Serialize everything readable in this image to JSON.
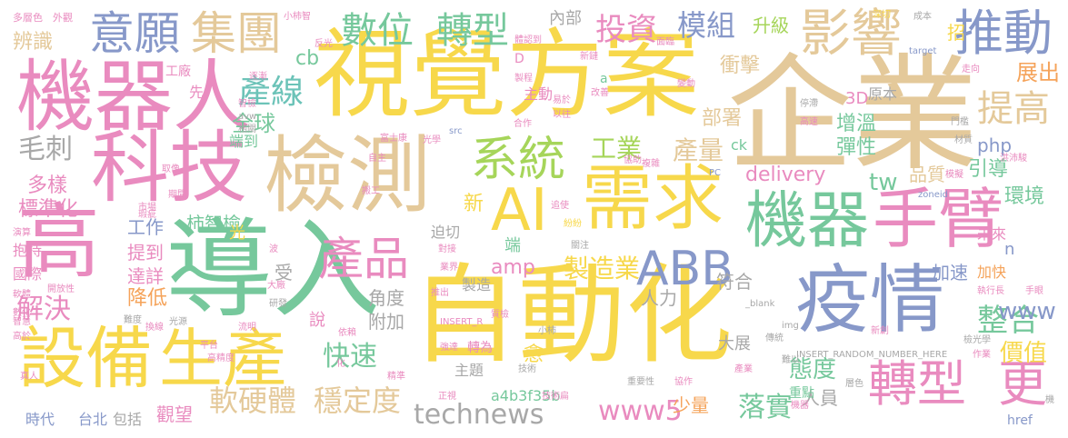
{
  "palette": {
    "yellow": "#f7d84b",
    "green": "#76c89c",
    "pink": "#e98bbf",
    "tan": "#e4c99a",
    "blue": "#8798c9",
    "gray": "#a8a8a8",
    "lime": "#a6d55a",
    "orange": "#f5a35a",
    "teal": "#6cc3b8"
  },
  "words": [
    {
      "text": "企業",
      "color": "tan"
    },
    {
      "text": "視覺方案",
      "color": "yellow"
    },
    {
      "text": "自動化",
      "color": "yellow"
    },
    {
      "text": "導入",
      "color": "green"
    },
    {
      "text": "檢測",
      "color": "tan"
    },
    {
      "text": "機器人",
      "color": "pink"
    },
    {
      "text": "科技",
      "color": "pink"
    },
    {
      "text": "疫情",
      "color": "blue"
    },
    {
      "text": "需求",
      "color": "yellow"
    },
    {
      "text": "機器",
      "color": "green"
    },
    {
      "text": "手臂",
      "color": "pink"
    },
    {
      "text": "設備",
      "color": "yellow"
    },
    {
      "text": "生產",
      "color": "yellow"
    },
    {
      "text": "高",
      "color": "pink"
    },
    {
      "text": "AI",
      "color": "yellow"
    },
    {
      "text": "系統",
      "color": "lime"
    },
    {
      "text": "產品",
      "color": "pink"
    },
    {
      "text": "ABB",
      "color": "blue"
    },
    {
      "text": "轉型",
      "color": "pink"
    },
    {
      "text": "更",
      "color": "pink"
    },
    {
      "text": "意願",
      "color": "blue"
    },
    {
      "text": "集團",
      "color": "tan"
    },
    {
      "text": "數位",
      "color": "green"
    },
    {
      "text": "轉型",
      "color": "green"
    },
    {
      "text": "影響",
      "color": "tan"
    },
    {
      "text": "推動",
      "color": "blue"
    },
    {
      "text": "投資",
      "color": "pink"
    },
    {
      "text": "模組",
      "color": "blue"
    },
    {
      "text": "升級",
      "color": "lime"
    },
    {
      "text": "內部",
      "color": "gray"
    },
    {
      "text": "產線",
      "color": "teal"
    },
    {
      "text": "提高",
      "color": "tan"
    },
    {
      "text": "展出",
      "color": "orange"
    },
    {
      "text": "全球",
      "color": "green"
    },
    {
      "text": "衝擊",
      "color": "tan"
    },
    {
      "text": "部署",
      "color": "tan"
    },
    {
      "text": "工業",
      "color": "lime"
    },
    {
      "text": "產量",
      "color": "tan"
    },
    {
      "text": "毛刺",
      "color": "gray"
    },
    {
      "text": "軟硬體",
      "color": "tan"
    },
    {
      "text": "穩定度",
      "color": "tan"
    },
    {
      "text": "technews",
      "color": "gray"
    },
    {
      "text": "www5",
      "color": "pink"
    },
    {
      "text": "落實",
      "color": "green"
    },
    {
      "text": "態度",
      "color": "green"
    },
    {
      "text": "價值",
      "color": "yellow"
    },
    {
      "text": "整合",
      "color": "green"
    },
    {
      "text": "www",
      "color": "blue"
    },
    {
      "text": "製造業",
      "color": "yellow"
    },
    {
      "text": "amp",
      "color": "pink"
    },
    {
      "text": "快速",
      "color": "green"
    },
    {
      "text": "解決",
      "color": "pink"
    },
    {
      "text": "降低",
      "color": "orange"
    },
    {
      "text": "標準化",
      "color": "pink"
    },
    {
      "text": "多樣",
      "color": "pink"
    },
    {
      "text": "辨識",
      "color": "tan"
    },
    {
      "text": "柿智檢",
      "color": "green"
    },
    {
      "text": "工作",
      "color": "blue"
    },
    {
      "text": "提到",
      "color": "pink"
    },
    {
      "text": "達詳",
      "color": "pink"
    },
    {
      "text": "delivery",
      "color": "pink"
    },
    {
      "text": "品質",
      "color": "tan"
    },
    {
      "text": "環境",
      "color": "green"
    },
    {
      "text": "引導",
      "color": "green"
    },
    {
      "text": "增溫",
      "color": "green"
    },
    {
      "text": "彈性",
      "color": "green"
    },
    {
      "text": "php",
      "color": "blue"
    },
    {
      "text": "tw",
      "color": "green"
    },
    {
      "text": "加速",
      "color": "blue"
    },
    {
      "text": "加快",
      "color": "orange"
    },
    {
      "text": "符合",
      "color": "gray"
    },
    {
      "text": "人力",
      "color": "gray"
    },
    {
      "text": "角度",
      "color": "gray"
    },
    {
      "text": "附加",
      "color": "gray"
    },
    {
      "text": "人員",
      "color": "gray"
    },
    {
      "text": "少量",
      "color": "orange"
    },
    {
      "text": "重點",
      "color": "green"
    },
    {
      "text": "a4b3f35b",
      "color": "green"
    },
    {
      "text": "3D",
      "color": "pink"
    },
    {
      "text": "原本",
      "color": "gray"
    },
    {
      "text": "cb",
      "color": "green"
    },
    {
      "text": "新",
      "color": "yellow"
    },
    {
      "text": "迫切",
      "color": "gray"
    },
    {
      "text": "端",
      "color": "green"
    },
    {
      "text": "時代",
      "color": "blue"
    },
    {
      "text": "台北",
      "color": "blue"
    },
    {
      "text": "包括",
      "color": "gray"
    },
    {
      "text": "觀望",
      "color": "pink"
    },
    {
      "text": "說",
      "color": "pink"
    },
    {
      "text": "主題",
      "color": "gray"
    },
    {
      "text": "轉為",
      "color": "pink"
    },
    {
      "text": "愈",
      "color": "yellow"
    },
    {
      "text": "大展",
      "color": "gray"
    },
    {
      "text": "製造",
      "color": "gray"
    },
    {
      "text": "國際",
      "color": "pink"
    },
    {
      "text": "抱持",
      "color": "pink"
    },
    {
      "text": "光",
      "color": "yellow"
    },
    {
      "text": "受",
      "color": "gray"
    },
    {
      "text": "端到",
      "color": "green"
    },
    {
      "text": "先",
      "color": "pink"
    },
    {
      "text": "工廠",
      "color": "pink"
    },
    {
      "text": "招",
      "color": "yellow"
    },
    {
      "text": "n",
      "color": "blue"
    },
    {
      "text": "未來",
      "color": "pink"
    },
    {
      "text": "ck",
      "color": "green"
    },
    {
      "text": "主動",
      "color": "pink"
    },
    {
      "text": "D",
      "color": "pink"
    },
    {
      "text": "a",
      "color": "green"
    },
    {
      "text": "href",
      "color": "blue"
    },
    {
      "text": "多層色",
      "color": "pink"
    },
    {
      "text": "外觀",
      "color": "pink"
    },
    {
      "text": "小柿智",
      "color": "pink"
    },
    {
      "text": "深切",
      "color": "yellow"
    },
    {
      "text": "成本",
      "color": "gray"
    },
    {
      "text": "反光",
      "color": "pink"
    },
    {
      "text": "體認到",
      "color": "pink"
    },
    {
      "text": "面臨",
      "color": "pink"
    },
    {
      "text": "逐漸",
      "color": "pink"
    },
    {
      "text": "新鏈",
      "color": "pink"
    },
    {
      "text": "target",
      "color": "blue"
    },
    {
      "text": "走向",
      "color": "pink"
    },
    {
      "text": "製程",
      "color": "pink"
    },
    {
      "text": "改善",
      "color": "pink"
    },
    {
      "text": "變動",
      "color": "pink"
    },
    {
      "text": "停滯",
      "color": "gray"
    },
    {
      "text": "智檢",
      "color": "pink"
    },
    {
      "text": "易於",
      "color": "pink"
    },
    {
      "text": "以往",
      "color": "pink"
    },
    {
      "text": "合作",
      "color": "pink"
    },
    {
      "text": "avw",
      "color": "gray"
    },
    {
      "text": "src",
      "color": "blue"
    },
    {
      "text": "光學",
      "color": "pink"
    },
    {
      "text": "富士康",
      "color": "pink"
    },
    {
      "text": "高速",
      "color": "pink"
    },
    {
      "text": "相關",
      "color": "gray"
    },
    {
      "text": "門檻",
      "color": "gray"
    },
    {
      "text": "材質",
      "color": "gray"
    },
    {
      "text": "洪沛駿",
      "color": "pink"
    },
    {
      "text": "模擬",
      "color": "pink"
    },
    {
      "text": "自主",
      "color": "pink"
    },
    {
      "text": "PC",
      "color": "blue"
    },
    {
      "text": "取像",
      "color": "pink"
    },
    {
      "text": "複雜",
      "color": "pink"
    },
    {
      "text": "協助",
      "color": "pink"
    },
    {
      "text": "搬工",
      "color": "pink"
    },
    {
      "text": "zoneid",
      "color": "blue"
    },
    {
      "text": "期間",
      "color": "pink"
    },
    {
      "text": "市場",
      "color": "pink"
    },
    {
      "text": "追使",
      "color": "pink"
    },
    {
      "text": "瑕疵",
      "color": "pink"
    },
    {
      "text": "紛紛",
      "color": "yellow"
    },
    {
      "text": "演算",
      "color": "pink"
    },
    {
      "text": "波",
      "color": "pink"
    },
    {
      "text": "對接",
      "color": "pink"
    },
    {
      "text": "關注",
      "color": "gray"
    },
    {
      "text": "軟體",
      "color": "pink"
    },
    {
      "text": "開放性",
      "color": "pink"
    },
    {
      "text": "業界",
      "color": "pink"
    },
    {
      "text": "推出",
      "color": "pink"
    },
    {
      "text": "執行長",
      "color": "pink"
    },
    {
      "text": "手眼",
      "color": "pink"
    },
    {
      "text": "大廠",
      "color": "pink"
    },
    {
      "text": "研發",
      "color": "gray"
    },
    {
      "text": "難度",
      "color": "gray"
    },
    {
      "text": "數化",
      "color": "pink"
    },
    {
      "text": "智慧",
      "color": "pink"
    },
    {
      "text": "光源",
      "color": "gray"
    },
    {
      "text": "換線",
      "color": "pink"
    },
    {
      "text": "質檢",
      "color": "pink"
    },
    {
      "text": "_blank",
      "color": "gray"
    },
    {
      "text": "INSERT_R",
      "color": "pink"
    },
    {
      "text": "流明",
      "color": "pink"
    },
    {
      "text": "依賴",
      "color": "pink"
    },
    {
      "text": "img",
      "color": "gray"
    },
    {
      "text": "小柿",
      "color": "gray"
    },
    {
      "text": "新創",
      "color": "pink"
    },
    {
      "text": "高於",
      "color": "pink"
    },
    {
      "text": "傳統",
      "color": "gray"
    },
    {
      "text": "INSERT_RANDOM_NUMBER_HERE",
      "color": "gray"
    },
    {
      "text": "檢光學",
      "color": "gray"
    },
    {
      "text": "平台",
      "color": "pink"
    },
    {
      "text": "強達",
      "color": "pink"
    },
    {
      "text": "作業",
      "color": "pink"
    },
    {
      "text": "高精度",
      "color": "pink"
    },
    {
      "text": "難以",
      "color": "gray"
    },
    {
      "text": "化",
      "color": "pink"
    },
    {
      "text": "技術",
      "color": "gray"
    },
    {
      "text": "產業",
      "color": "pink"
    },
    {
      "text": "真人",
      "color": "pink"
    },
    {
      "text": "精準",
      "color": "pink"
    },
    {
      "text": "重要性",
      "color": "gray"
    },
    {
      "text": "協作",
      "color": "pink"
    },
    {
      "text": "層色",
      "color": "gray"
    },
    {
      "text": "正視",
      "color": "pink"
    },
    {
      "text": "技術扁",
      "color": "pink"
    },
    {
      "text": "機器",
      "color": "pink"
    },
    {
      "text": "機",
      "color": "gray"
    }
  ]
}
